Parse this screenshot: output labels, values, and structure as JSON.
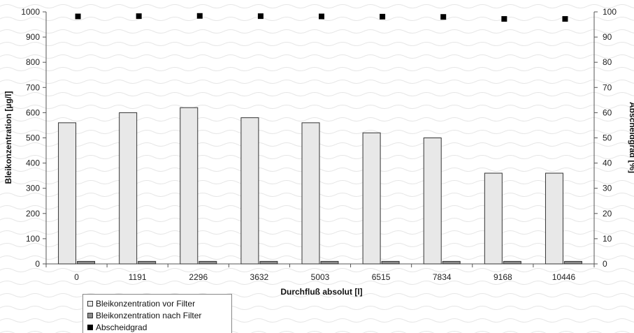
{
  "chart_data": {
    "type": "bar",
    "xlabel": "Durchfluß absolut [l]",
    "ylabel": "Bleikonzentration [µg/l]",
    "y2label": "Abscheidgrad [%]",
    "categories": [
      "0",
      "1191",
      "2296",
      "3632",
      "5003",
      "6515",
      "7834",
      "9168",
      "10446"
    ],
    "ylim": [
      0,
      1000
    ],
    "y2lim": [
      0,
      100
    ],
    "yticks": [
      0,
      100,
      200,
      300,
      400,
      500,
      600,
      700,
      800,
      900,
      1000
    ],
    "y2ticks": [
      0,
      10,
      20,
      30,
      40,
      50,
      60,
      70,
      80,
      90,
      100
    ],
    "series": [
      {
        "name": "Bleikonzentration vor Filter",
        "type": "bar",
        "axis": "left",
        "color": "#e8e8e8",
        "values": [
          560,
          600,
          620,
          580,
          560,
          520,
          500,
          360,
          360
        ]
      },
      {
        "name": "Bleikonzentration nach Filter",
        "type": "bar",
        "axis": "left",
        "color": "#8c8c8c",
        "values": [
          10,
          10,
          10,
          10,
          10,
          10,
          10,
          10,
          10
        ]
      },
      {
        "name": "Abscheidgrad",
        "type": "scatter",
        "axis": "right",
        "color": "#000000",
        "values": [
          98.2,
          98.3,
          98.4,
          98.3,
          98.2,
          98.1,
          98.0,
          97.2,
          97.2
        ]
      }
    ],
    "legend_position": "bottom-left",
    "grid": false
  }
}
